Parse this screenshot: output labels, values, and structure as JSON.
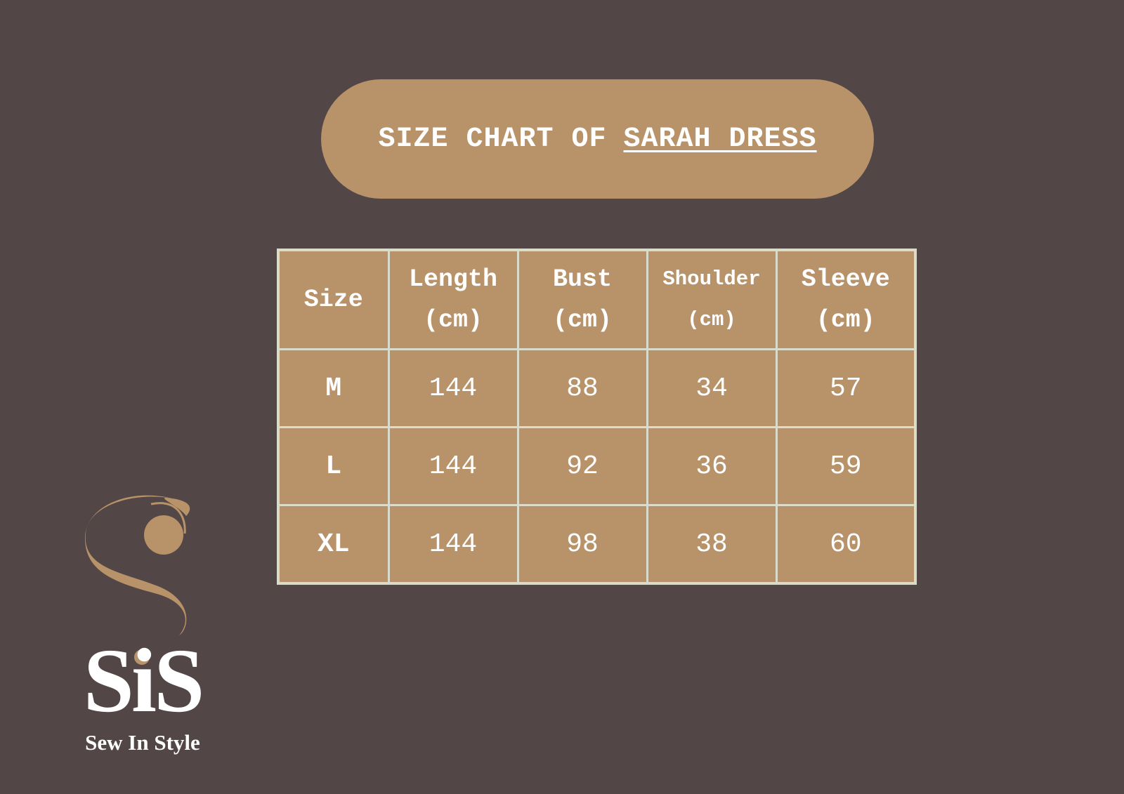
{
  "title": {
    "prefix": "SIZE CHART OF",
    "product": "SARAH DRESS"
  },
  "table": {
    "headers": [
      {
        "line1": "Size",
        "line2": ""
      },
      {
        "line1": "Length",
        "line2": "(cm)"
      },
      {
        "line1": "Bust",
        "line2": "(cm)"
      },
      {
        "line1": "Shoulder",
        "line2": "(cm)"
      },
      {
        "line1": "Sleeve",
        "line2": "(cm)"
      }
    ],
    "rows": [
      [
        "M",
        "144",
        "88",
        "34",
        "57"
      ],
      [
        "L",
        "144",
        "92",
        "36",
        "59"
      ],
      [
        "XL",
        "144",
        "98",
        "38",
        "60"
      ]
    ]
  },
  "logo": {
    "mark": "SiS",
    "tagline": "Sew In Style"
  },
  "colors": {
    "background": "#524646",
    "accent": "#b89269",
    "border": "#d9dccb",
    "text": "#ffffff"
  }
}
